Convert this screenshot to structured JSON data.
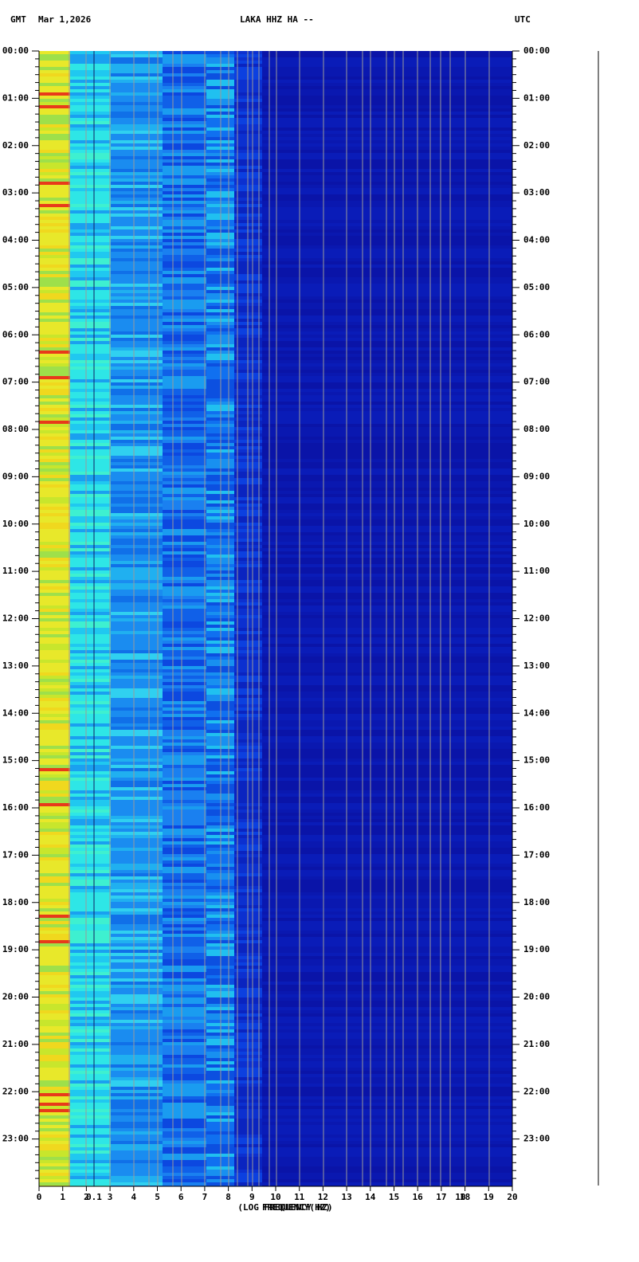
{
  "header": {
    "left": "GMT",
    "date": "Mar 1,2026",
    "station": "LAKA HHZ HA --",
    "right": "UTC"
  },
  "time_labels": [
    "00:00",
    "01:00",
    "02:00",
    "03:00",
    "04:00",
    "05:00",
    "06:00",
    "07:00",
    "08:00",
    "09:00",
    "10:00",
    "11:00",
    "12:00",
    "13:00",
    "14:00",
    "15:00",
    "16:00",
    "17:00",
    "18:00",
    "19:00",
    "20:00",
    "21:00",
    "22:00",
    "23:00"
  ],
  "freq_ticks": [
    0,
    1,
    2,
    3,
    4,
    5,
    6,
    7,
    8,
    9,
    10,
    11,
    12,
    13,
    14,
    15,
    16,
    17,
    18,
    19,
    20
  ],
  "overlay_labels": [
    "0.1",
    "10"
  ],
  "xlabel": "(LOG FREQUENCY HZ)",
  "xlabel_overlay": "FREQUENCY(HZ)"
}
